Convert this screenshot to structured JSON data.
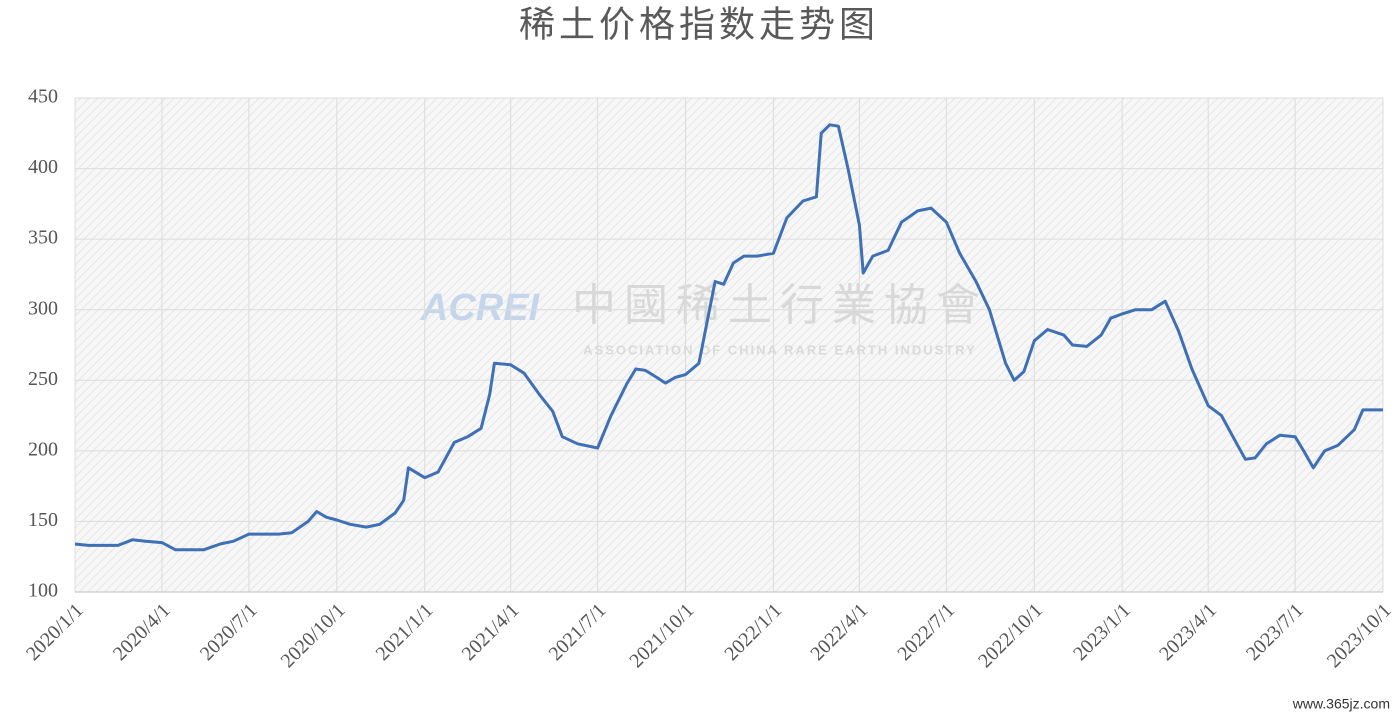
{
  "chart_data": {
    "type": "line",
    "title": "稀土价格指数走势图",
    "x": [
      "2020/1/1",
      "2020/1/15",
      "2020/2/1",
      "2020/2/15",
      "2020/3/1",
      "2020/3/15",
      "2020/4/1",
      "2020/4/15",
      "2020/5/1",
      "2020/5/15",
      "2020/6/1",
      "2020/6/15",
      "2020/7/1",
      "2020/7/15",
      "2020/8/1",
      "2020/8/15",
      "2020/9/1",
      "2020/9/10",
      "2020/9/20",
      "2020/10/1",
      "2020/10/15",
      "2020/11/1",
      "2020/11/15",
      "2020/12/1",
      "2020/12/10",
      "2020/12/15",
      "2021/1/1",
      "2021/1/15",
      "2021/2/1",
      "2021/2/15",
      "2021/3/1",
      "2021/3/10",
      "2021/3/15",
      "2021/4/1",
      "2021/4/15",
      "2021/5/1",
      "2021/5/15",
      "2021/5/25",
      "2021/6/10",
      "2021/7/1",
      "2021/7/15",
      "2021/8/1",
      "2021/8/10",
      "2021/8/20",
      "2021/9/1",
      "2021/9/10",
      "2021/9/20",
      "2021/10/1",
      "2021/10/15",
      "2021/11/1",
      "2021/11/10",
      "2021/11/20",
      "2021/12/1",
      "2021/12/15",
      "2022/1/1",
      "2022/1/15",
      "2022/2/1",
      "2022/2/15",
      "2022/2/20",
      "2022/3/1",
      "2022/3/10",
      "2022/3/20",
      "2022/4/1",
      "2022/4/5",
      "2022/4/15",
      "2022/5/1",
      "2022/5/15",
      "2022/6/1",
      "2022/6/15",
      "2022/7/1",
      "2022/7/15",
      "2022/8/1",
      "2022/8/15",
      "2022/9/1",
      "2022/9/10",
      "2022/9/20",
      "2022/10/1",
      "2022/10/15",
      "2022/11/1",
      "2022/11/10",
      "2022/11/25",
      "2022/12/10",
      "2022/12/20",
      "2023/1/1",
      "2023/1/15",
      "2023/2/1",
      "2023/2/15",
      "2023/3/1",
      "2023/3/15",
      "2023/4/1",
      "2023/4/15",
      "2023/5/1",
      "2023/5/10",
      "2023/5/20",
      "2023/6/1",
      "2023/6/15",
      "2023/7/1",
      "2023/7/10",
      "2023/7/20",
      "2023/8/1",
      "2023/8/15",
      "2023/9/1",
      "2023/9/10",
      "2023/10/1"
    ],
    "series": [
      {
        "name": "稀土价格指数",
        "color": "#3f70b5",
        "values": [
          134,
          133,
          133,
          133,
          137,
          136,
          135,
          130,
          130,
          130,
          134,
          136,
          141,
          141,
          141,
          142,
          150,
          157,
          153,
          151,
          148,
          146,
          148,
          156,
          165,
          188,
          181,
          185,
          206,
          210,
          216,
          240,
          262,
          261,
          255,
          240,
          228,
          210,
          205,
          202,
          225,
          248,
          258,
          257,
          252,
          248,
          252,
          254,
          262,
          320,
          318,
          333,
          338,
          338,
          340,
          365,
          377,
          380,
          425,
          431,
          430,
          400,
          360,
          326,
          338,
          342,
          362,
          370,
          372,
          362,
          340,
          320,
          300,
          262,
          250,
          256,
          278,
          286,
          282,
          275,
          274,
          282,
          294,
          297,
          300,
          300,
          306,
          285,
          258,
          232,
          225,
          205,
          194,
          195,
          205,
          211,
          210,
          200,
          188,
          200,
          204,
          215,
          229,
          229
        ]
      }
    ],
    "xlim": [
      "2020/1/1",
      "2023/10/1"
    ],
    "xticks": [
      "2020/1/1",
      "2020/4/1",
      "2020/7/1",
      "2020/10/1",
      "2021/1/1",
      "2021/4/1",
      "2021/7/1",
      "2021/10/1",
      "2022/1/1",
      "2022/4/1",
      "2022/7/1",
      "2022/10/1",
      "2023/1/1",
      "2023/4/1",
      "2023/7/1",
      "2023/10/1"
    ],
    "ylim": [
      100,
      450
    ],
    "yticks": [
      100,
      150,
      200,
      250,
      300,
      350,
      400,
      450
    ],
    "grid": true,
    "watermark": {
      "logo": "ACREI",
      "name": "中國稀土行業協會",
      "name_en": "ASSOCIATION OF CHINA RARE EARTH INDUSTRY"
    },
    "source": "www.365jz.com"
  }
}
